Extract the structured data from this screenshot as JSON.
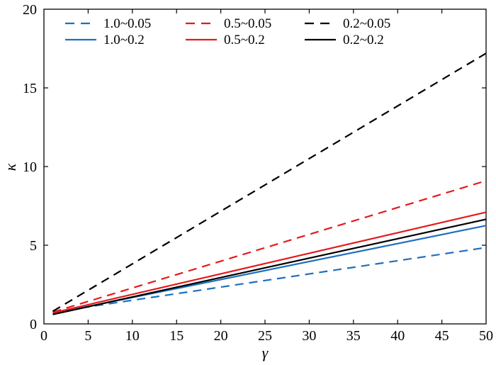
{
  "chart_data": {
    "type": "line",
    "title": "",
    "xlabel": "γ",
    "ylabel": "κ",
    "xlim": [
      0,
      50
    ],
    "ylim": [
      0,
      20
    ],
    "xticks": [
      0,
      5,
      10,
      15,
      20,
      25,
      30,
      35,
      40,
      45,
      50
    ],
    "yticks": [
      0,
      5,
      10,
      15,
      20
    ],
    "grid": false,
    "legend_position": "top",
    "series": [
      {
        "name": "1.0~0.05",
        "color": "#1f6fbf",
        "dash": true,
        "x": [
          1,
          50
        ],
        "y": [
          0.75,
          4.85
        ]
      },
      {
        "name": "0.5~0.05",
        "color": "#e41a1c",
        "dash": true,
        "x": [
          1,
          50
        ],
        "y": [
          0.75,
          9.1
        ]
      },
      {
        "name": "0.2~0.05",
        "color": "#000000",
        "dash": true,
        "x": [
          1,
          50
        ],
        "y": [
          0.8,
          17.2
        ]
      },
      {
        "name": "1.0~0.2",
        "color": "#1f6fbf",
        "dash": false,
        "x": [
          1,
          50
        ],
        "y": [
          0.65,
          6.25
        ]
      },
      {
        "name": "0.5~0.2",
        "color": "#e41a1c",
        "dash": false,
        "x": [
          1,
          50
        ],
        "y": [
          0.7,
          7.1
        ]
      },
      {
        "name": "0.2~0.2",
        "color": "#000000",
        "dash": false,
        "x": [
          1,
          50
        ],
        "y": [
          0.6,
          6.65
        ]
      }
    ]
  }
}
